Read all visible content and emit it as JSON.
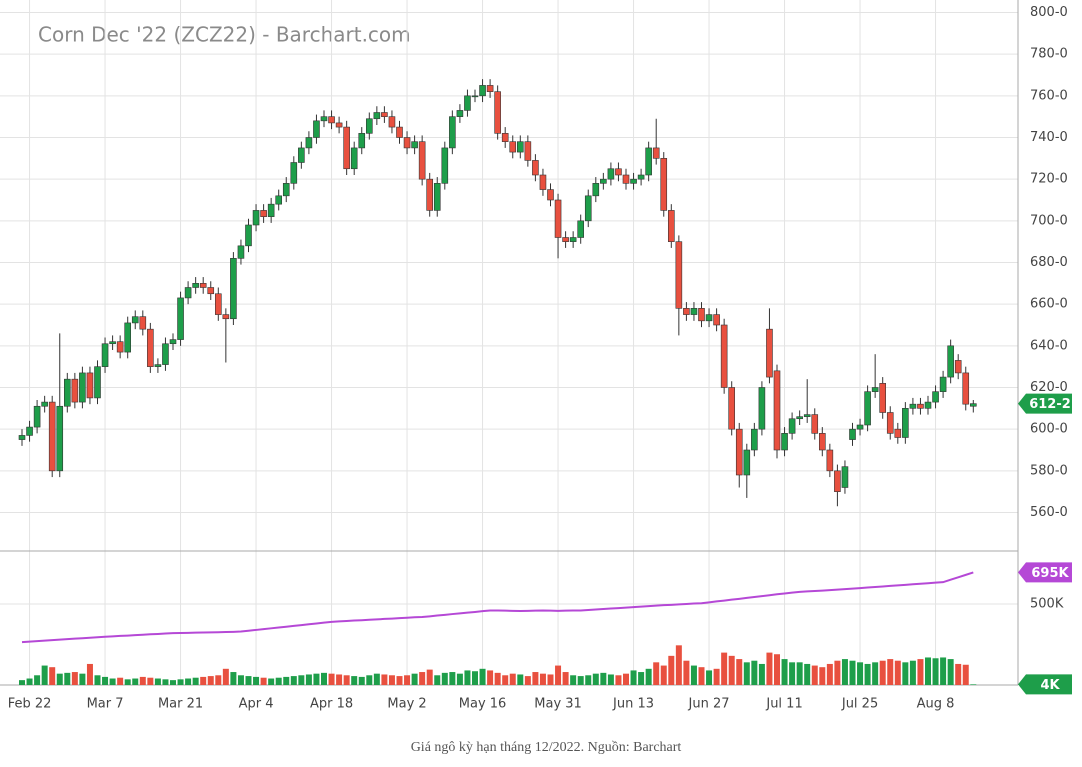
{
  "chart_data": {
    "type": "candlestick",
    "title": "Corn Dec '22 (ZCZ22) - Barchart.com",
    "caption": "Giá ngô kỳ hạn tháng 12/2022. Nguồn: Barchart",
    "categories": [
      null,
      "Feb 22",
      null,
      null,
      null,
      null,
      null,
      null,
      null,
      null,
      null,
      "Mar 7",
      null,
      null,
      null,
      null,
      null,
      null,
      null,
      null,
      null,
      "Mar 21",
      null,
      null,
      null,
      null,
      null,
      null,
      null,
      null,
      null,
      "Apr 4",
      null,
      null,
      null,
      null,
      null,
      null,
      null,
      null,
      null,
      "Apr 18",
      null,
      null,
      null,
      null,
      null,
      null,
      null,
      null,
      null,
      "May 2",
      null,
      null,
      null,
      null,
      null,
      null,
      null,
      null,
      null,
      "May 16",
      null,
      null,
      null,
      null,
      null,
      null,
      null,
      null,
      null,
      "May 31",
      null,
      null,
      null,
      null,
      null,
      null,
      null,
      null,
      null,
      "Jun 13",
      null,
      null,
      null,
      null,
      null,
      null,
      null,
      null,
      null,
      "Jun 27",
      null,
      null,
      null,
      null,
      null,
      null,
      null,
      null,
      null,
      "Jul 11",
      null,
      null,
      null,
      null,
      null,
      null,
      null,
      null,
      null,
      "Jul 25",
      null,
      null,
      null,
      null,
      null,
      null,
      null,
      null,
      null,
      "Aug 8",
      null,
      null,
      null,
      null,
      null
    ],
    "open": [
      595,
      597,
      601,
      611,
      613,
      580,
      611,
      624,
      613,
      627,
      615,
      630,
      641,
      642,
      637,
      651,
      654,
      648,
      630,
      631,
      641,
      643,
      663,
      668,
      670,
      668,
      665,
      655,
      653,
      682,
      688,
      698,
      705,
      702,
      708,
      712,
      718,
      728,
      735,
      740,
      748,
      750,
      747,
      745,
      725,
      735,
      742,
      749,
      752,
      750,
      745,
      740,
      735,
      738,
      720,
      705,
      718,
      735,
      750,
      753,
      760,
      760,
      765,
      762,
      742,
      738,
      733,
      738,
      729,
      722,
      715,
      710,
      692,
      690,
      692,
      700,
      712,
      718,
      720,
      725,
      722,
      718,
      720,
      722,
      735,
      730,
      705,
      690,
      658,
      655,
      658,
      652,
      655,
      650,
      620,
      600,
      578,
      590,
      600,
      648,
      628,
      590,
      598,
      605,
      606,
      607,
      598,
      590,
      580,
      572,
      595,
      600,
      602,
      618,
      622,
      608,
      600,
      596,
      610,
      612,
      610,
      613,
      618,
      625,
      633,
      627,
      611
    ],
    "high": [
      600,
      604,
      614,
      616,
      616,
      646,
      627,
      627,
      630,
      630,
      633,
      644,
      645,
      645,
      654,
      657,
      657,
      651,
      634,
      644,
      646,
      666,
      671,
      673,
      673,
      671,
      668,
      658,
      685,
      691,
      701,
      708,
      708,
      711,
      715,
      721,
      731,
      738,
      743,
      751,
      753,
      753,
      750,
      748,
      738,
      745,
      752,
      755,
      755,
      753,
      748,
      743,
      741,
      741,
      723,
      721,
      738,
      753,
      756,
      763,
      763,
      768,
      768,
      765,
      745,
      741,
      741,
      741,
      732,
      725,
      718,
      713,
      695,
      695,
      703,
      715,
      721,
      723,
      728,
      728,
      725,
      723,
      725,
      738,
      749,
      733,
      708,
      693,
      661,
      661,
      661,
      658,
      658,
      653,
      623,
      603,
      593,
      603,
      623,
      658,
      631,
      601,
      608,
      609,
      624,
      610,
      601,
      593,
      583,
      585,
      603,
      605,
      621,
      636,
      625,
      611,
      603,
      613,
      615,
      615,
      616,
      621,
      628,
      643,
      636,
      630,
      614
    ],
    "low": [
      592,
      594,
      598,
      608,
      577,
      577,
      608,
      610,
      610,
      612,
      612,
      627,
      638,
      634,
      634,
      648,
      645,
      627,
      627,
      628,
      638,
      640,
      660,
      665,
      665,
      662,
      652,
      632,
      650,
      679,
      685,
      695,
      699,
      699,
      705,
      709,
      715,
      725,
      732,
      737,
      745,
      744,
      742,
      722,
      722,
      732,
      739,
      746,
      747,
      742,
      737,
      732,
      732,
      717,
      702,
      702,
      715,
      732,
      747,
      750,
      757,
      757,
      759,
      739,
      735,
      730,
      730,
      726,
      719,
      712,
      707,
      682,
      687,
      687,
      689,
      697,
      709,
      715,
      717,
      719,
      715,
      715,
      717,
      719,
      727,
      702,
      687,
      645,
      652,
      652,
      649,
      649,
      647,
      617,
      597,
      572,
      567,
      587,
      597,
      622,
      586,
      587,
      595,
      602,
      603,
      595,
      587,
      577,
      563,
      569,
      592,
      597,
      599,
      615,
      605,
      595,
      593,
      593,
      607,
      607,
      607,
      610,
      615,
      622,
      624,
      609,
      608
    ],
    "close": [
      597,
      601,
      611,
      613,
      580,
      611,
      624,
      613,
      627,
      615,
      630,
      641,
      642,
      637,
      651,
      654,
      648,
      630,
      631,
      641,
      643,
      663,
      668,
      670,
      668,
      665,
      655,
      653,
      682,
      688,
      698,
      705,
      702,
      708,
      712,
      718,
      728,
      735,
      740,
      748,
      750,
      747,
      745,
      725,
      735,
      742,
      749,
      752,
      750,
      745,
      740,
      735,
      738,
      720,
      705,
      718,
      735,
      750,
      753,
      760,
      760,
      765,
      762,
      742,
      738,
      733,
      738,
      729,
      722,
      715,
      710,
      692,
      690,
      692,
      700,
      712,
      718,
      720,
      725,
      722,
      718,
      720,
      722,
      735,
      730,
      705,
      690,
      658,
      655,
      658,
      652,
      655,
      650,
      620,
      600,
      578,
      590,
      600,
      620,
      625,
      590,
      598,
      605,
      606,
      607,
      598,
      590,
      580,
      570,
      582,
      600,
      602,
      618,
      620,
      608,
      598,
      596,
      610,
      612,
      610,
      613,
      618,
      625,
      640,
      627,
      612,
      612.25
    ],
    "volume": [
      30,
      40,
      60,
      120,
      110,
      70,
      75,
      80,
      70,
      130,
      60,
      50,
      40,
      45,
      35,
      40,
      50,
      45,
      40,
      35,
      30,
      35,
      40,
      45,
      50,
      55,
      60,
      100,
      80,
      60,
      55,
      50,
      45,
      40,
      45,
      50,
      55,
      60,
      65,
      70,
      75,
      70,
      65,
      60,
      55,
      50,
      60,
      70,
      65,
      60,
      55,
      60,
      70,
      80,
      95,
      60,
      75,
      80,
      70,
      90,
      85,
      100,
      90,
      75,
      60,
      70,
      65,
      55,
      80,
      70,
      65,
      120,
      80,
      60,
      55,
      60,
      70,
      75,
      65,
      60,
      70,
      90,
      80,
      100,
      140,
      120,
      180,
      245,
      150,
      120,
      110,
      90,
      100,
      200,
      180,
      160,
      140,
      150,
      130,
      200,
      190,
      160,
      140,
      140,
      130,
      120,
      110,
      130,
      150,
      160,
      150,
      140,
      130,
      140,
      150,
      160,
      150,
      140,
      150,
      160,
      170,
      165,
      170,
      160,
      130,
      125,
      4
    ],
    "open_interest": [
      265,
      268,
      271,
      274,
      277,
      280,
      283,
      286,
      289,
      292,
      295,
      298,
      300,
      303,
      305,
      308,
      310,
      313,
      315,
      318,
      320,
      321,
      322,
      323,
      324,
      325,
      326,
      327,
      328,
      330,
      335,
      340,
      345,
      350,
      355,
      360,
      365,
      370,
      375,
      380,
      385,
      390,
      393,
      395,
      398,
      400,
      403,
      405,
      408,
      410,
      413,
      415,
      418,
      420,
      424,
      429,
      433,
      438,
      442,
      447,
      451,
      456,
      460,
      460,
      459,
      458,
      457,
      458,
      459,
      460,
      459,
      458,
      459,
      460,
      460,
      463,
      466,
      469,
      472,
      475,
      478,
      481,
      484,
      487,
      490,
      493,
      495,
      498,
      500,
      503,
      505,
      510,
      516,
      521,
      527,
      532,
      538,
      543,
      549,
      554,
      560,
      565,
      570,
      575,
      578,
      580,
      583,
      586,
      589,
      592,
      595,
      598,
      602,
      605,
      608,
      612,
      615,
      618,
      622,
      625,
      628,
      632,
      635,
      650,
      665,
      680,
      695
    ],
    "last_labels": {
      "close": "612-2",
      "open_interest": "695K",
      "volume": "4K"
    },
    "ylim": [
      542,
      806
    ],
    "yticks": [
      {
        "value": 560,
        "label": "560-0"
      },
      {
        "value": 580,
        "label": "580-0"
      },
      {
        "value": 600,
        "label": "600-0"
      },
      {
        "value": 620,
        "label": "620-0"
      },
      {
        "value": 640,
        "label": "640-0"
      },
      {
        "value": 660,
        "label": "660-0"
      },
      {
        "value": 680,
        "label": "680-0"
      },
      {
        "value": 700,
        "label": "700-0"
      },
      {
        "value": 720,
        "label": "720-0"
      },
      {
        "value": 740,
        "label": "740-0"
      },
      {
        "value": 760,
        "label": "760-0"
      },
      {
        "value": 780,
        "label": "780-0"
      },
      {
        "value": 800,
        "label": "800-0"
      }
    ],
    "y2lim": [
      0,
      815
    ],
    "y2ticks": [
      {
        "value": 500,
        "label": "500K"
      }
    ],
    "grid": true,
    "up_color": "#1e9e4a",
    "down_color": "#e8503f",
    "outline_color": "#333333",
    "oi_color": "#b548d6"
  }
}
